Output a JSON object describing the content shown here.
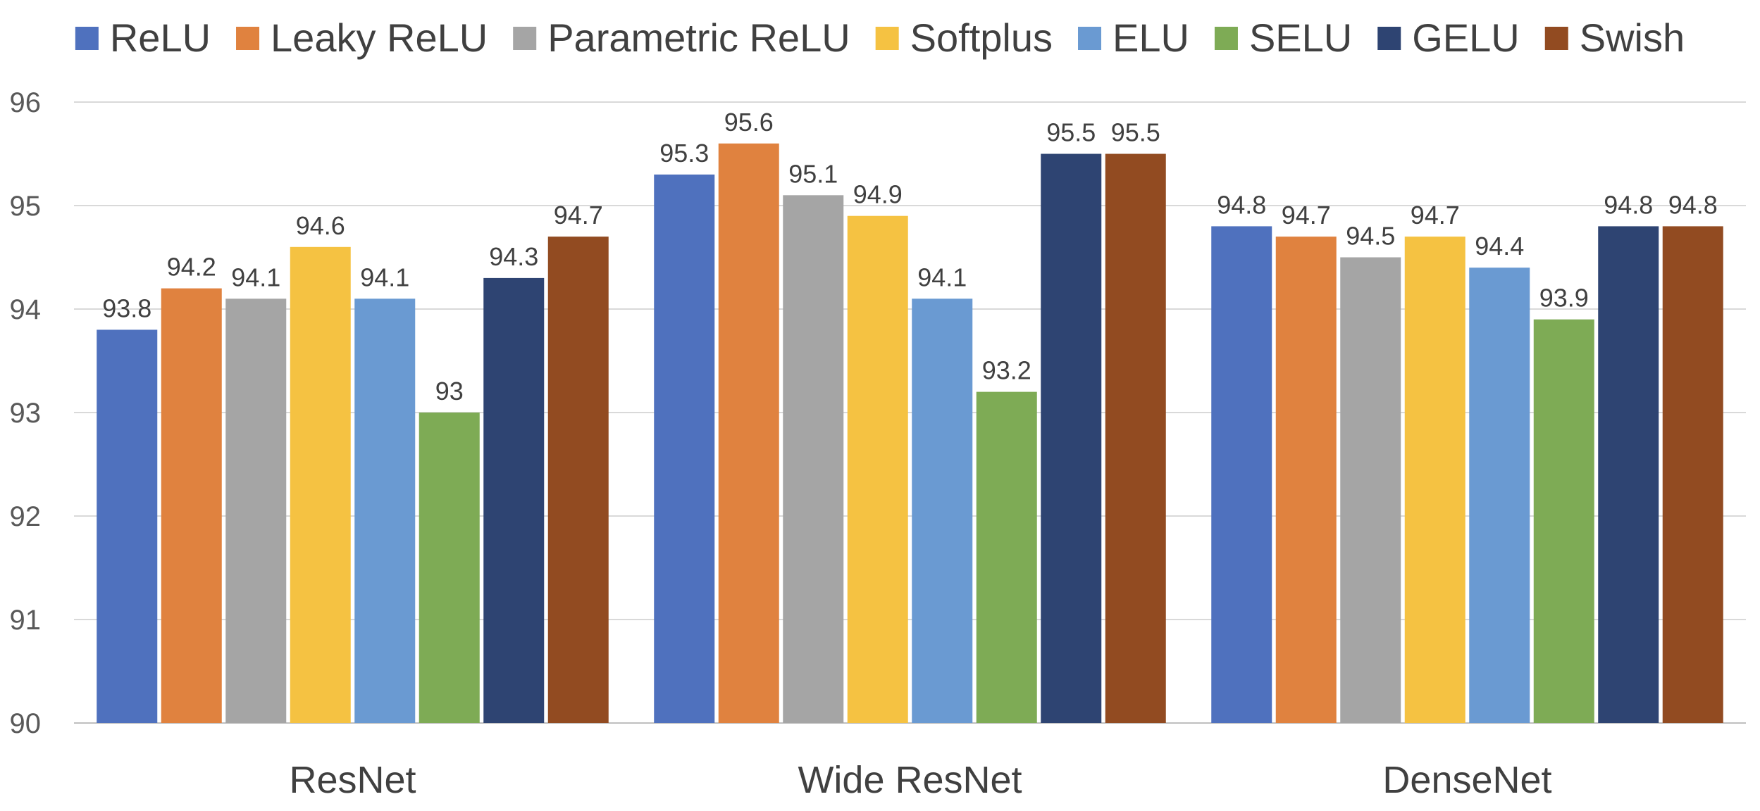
{
  "chart_data": {
    "type": "bar",
    "categories": [
      "ResNet",
      "Wide ResNet",
      "DenseNet"
    ],
    "series": [
      {
        "name": "ReLU",
        "color": "#4f71be",
        "values": [
          93.8,
          95.3,
          94.8
        ]
      },
      {
        "name": "Leaky ReLU",
        "color": "#e0823f",
        "values": [
          94.2,
          95.6,
          94.7
        ]
      },
      {
        "name": "Parametric ReLU",
        "color": "#a5a5a5",
        "values": [
          94.1,
          95.1,
          94.5
        ]
      },
      {
        "name": "Softplus",
        "color": "#f5c242",
        "values": [
          94.6,
          94.9,
          94.7
        ]
      },
      {
        "name": "ELU",
        "color": "#6a9ad2",
        "values": [
          94.1,
          94.1,
          94.4
        ]
      },
      {
        "name": "SELU",
        "color": "#7eab55",
        "values": [
          93.0,
          93.2,
          93.9
        ]
      },
      {
        "name": "GELU",
        "color": "#2e4472",
        "values": [
          94.3,
          95.5,
          94.8
        ]
      },
      {
        "name": "Swish",
        "color": "#924b21",
        "values": [
          94.7,
          95.5,
          94.8
        ]
      }
    ],
    "data_labels": [
      [
        "93.8",
        "95.3",
        "94.8"
      ],
      [
        "94.2",
        "95.6",
        "94.7"
      ],
      [
        "94.1",
        "95.1",
        "94.5"
      ],
      [
        "94.6",
        "94.9",
        "94.7"
      ],
      [
        "94.1",
        "94.1",
        "94.4"
      ],
      [
        "93",
        "93.2",
        "93.9"
      ],
      [
        "94.3",
        "95.5",
        "94.8"
      ],
      [
        "94.7",
        "95.5",
        "94.8"
      ]
    ],
    "yticks": [
      "90",
      "91",
      "92",
      "93",
      "94",
      "95",
      "96"
    ],
    "ylim": [
      90,
      96
    ],
    "title": "",
    "xlabel": "",
    "ylabel": "",
    "legend_position": "top",
    "grid": true
  }
}
